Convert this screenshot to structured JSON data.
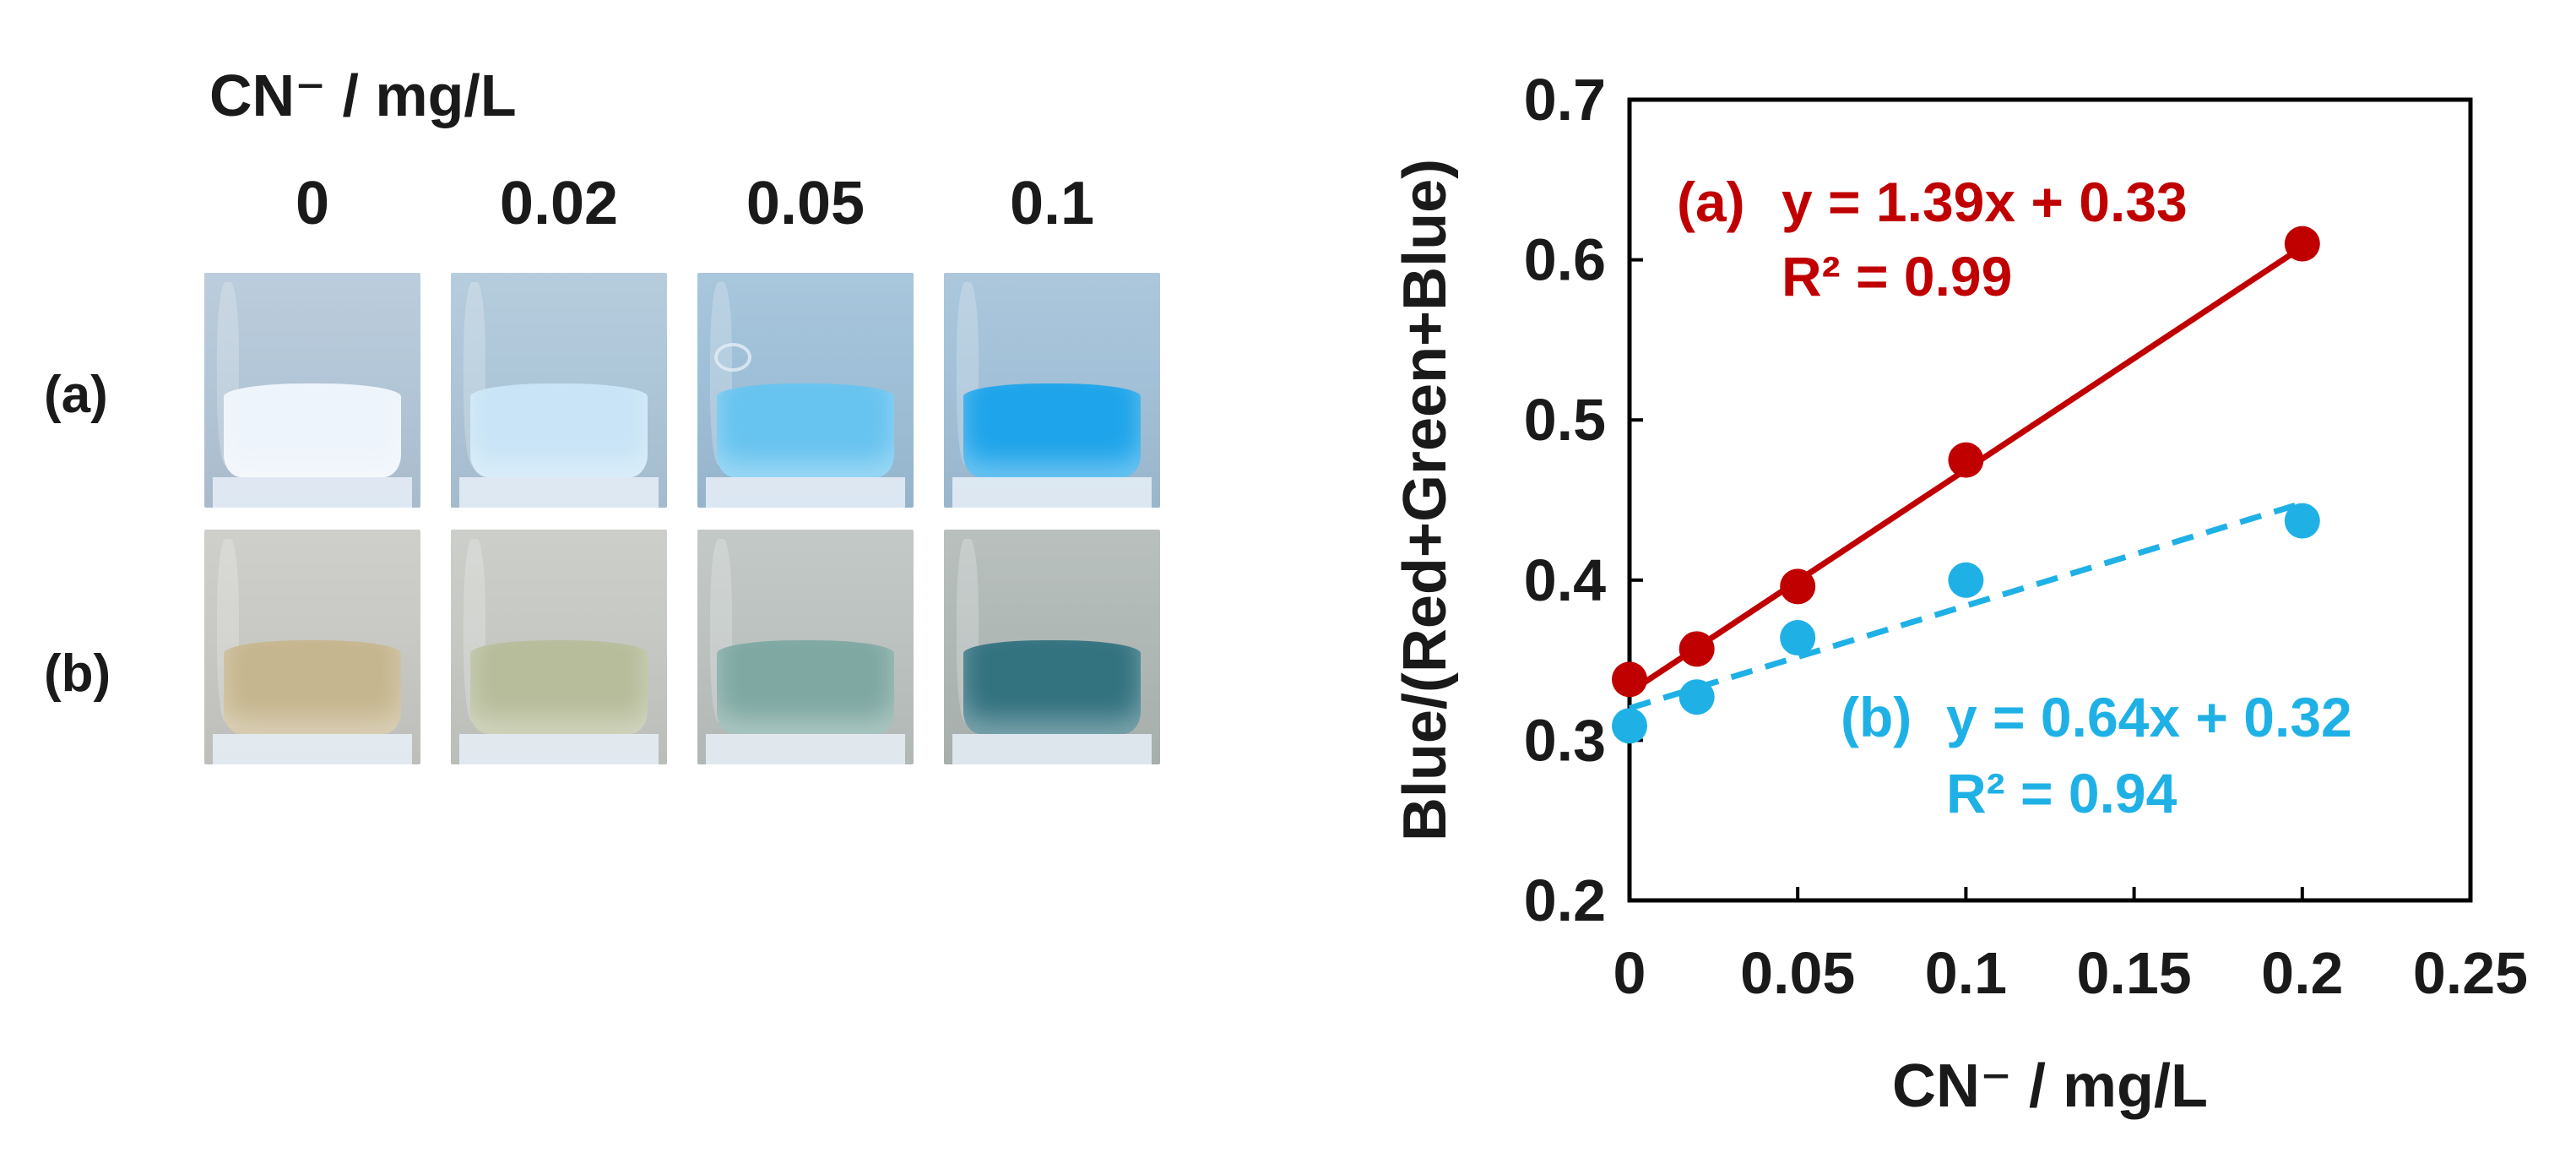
{
  "photos": {
    "title": "CN⁻ / mg/L",
    "concentrations": [
      "0",
      "0.02",
      "0.05",
      "0.1"
    ],
    "rows": [
      {
        "label": "(a)",
        "glass_colors": [
          "#b4c7d8",
          "#aec7d9",
          "#9fc0d8",
          "#a3c1d8"
        ],
        "fill_colors": [
          "#eef4fb",
          "#c8e4f6",
          "#67c3ef",
          "#1ea4ea"
        ]
      },
      {
        "label": "(b)",
        "glass_colors": [
          "#c9cac5",
          "#c6c9c4",
          "#bcc3c0",
          "#b1b9b7"
        ],
        "fill_colors": [
          "#c6b68f",
          "#b7bd9b",
          "#7fa8a2",
          "#33727f"
        ]
      }
    ]
  },
  "chart_data": {
    "type": "scatter",
    "xlabel": "CN⁻ / mg/L",
    "ylabel": "Blue/(Red+Green+Blue)",
    "xlim": [
      0,
      0.25
    ],
    "ylim": [
      0.2,
      0.7
    ],
    "xticks": [
      "0",
      "0.05",
      "0.1",
      "0.15",
      "0.2",
      "0.25"
    ],
    "xtick_values": [
      0,
      0.05,
      0.1,
      0.15,
      0.2,
      0.25
    ],
    "yticks": [
      "0.2",
      "0.3",
      "0.4",
      "0.5",
      "0.6",
      "0.7"
    ],
    "ytick_values": [
      0.2,
      0.3,
      0.4,
      0.5,
      0.6,
      0.7
    ],
    "grid": false,
    "series": [
      {
        "label": "(a)",
        "color": "#c00000",
        "line_style": "solid",
        "x": [
          0,
          0.02,
          0.05,
          0.1,
          0.2
        ],
        "y": [
          0.338,
          0.357,
          0.396,
          0.475,
          0.61
        ],
        "fit": {
          "slope": 1.39,
          "intercept": 0.33,
          "x_range": [
            0,
            0.2
          ]
        },
        "equation": "y = 1.39x + 0.33",
        "r2": "R² = 0.99"
      },
      {
        "label": "(b)",
        "color": "#1fb1e6",
        "line_style": "dashed",
        "x": [
          0,
          0.02,
          0.05,
          0.1,
          0.2
        ],
        "y": [
          0.309,
          0.327,
          0.364,
          0.4,
          0.437
        ],
        "fit": {
          "slope": 0.64,
          "intercept": 0.32,
          "x_range": [
            0,
            0.2
          ]
        },
        "equation": "y = 0.64x + 0.32",
        "r2": "R² = 0.94"
      }
    ]
  }
}
